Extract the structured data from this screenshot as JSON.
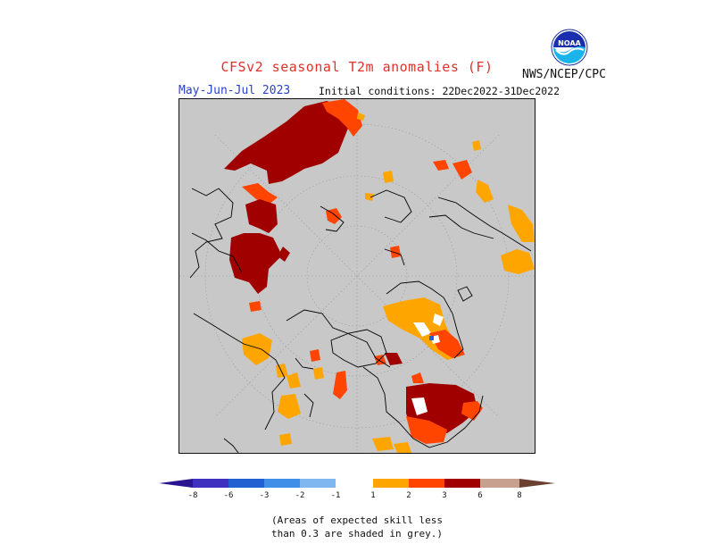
{
  "header": {
    "title": "CFSv2 seasonal T2m anomalies (F)",
    "period": "May-Jun-Jul 2023",
    "initial_conditions": "Initial conditions: 22Dec2022-31Dec2022",
    "agency": "NWS/NCEP/CPC",
    "logo_text": "NOAA"
  },
  "colors": {
    "background_grey": "#c8c8c8",
    "coastline": "#000000",
    "anom_1_2": "#ffa500",
    "anom_2_3": "#ff4500",
    "anom_3_6": "#a00000",
    "anom_6_8": "#c8a090",
    "cold_1": "#7fb8f0",
    "cold_2": "#3f8fe8",
    "cold_3": "#2060d0",
    "cold_4": "#4030c0",
    "cold_5": "#2a1490",
    "warm_end": "#6a4030"
  },
  "legend": {
    "ticks": [
      "-8",
      "-6",
      "-3",
      "-2",
      "-1",
      "1",
      "2",
      "3",
      "6",
      "8"
    ]
  },
  "footnote": {
    "line1": "(Areas of expected skill less",
    "line2": "than 0.3 are shaded in grey.)"
  }
}
